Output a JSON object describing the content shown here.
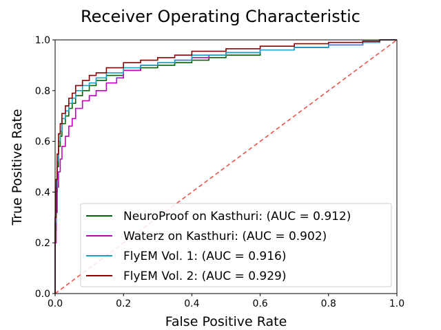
{
  "chart_data": {
    "type": "line",
    "title": "Receiver Operating Characteristic",
    "xlabel": "False Positive Rate",
    "ylabel": "True Positive Rate",
    "xlim": [
      0.0,
      1.0
    ],
    "ylim": [
      0.0,
      1.0
    ],
    "xticks": [
      "0.0",
      "0.2",
      "0.4",
      "0.6",
      "0.8",
      "1.0"
    ],
    "yticks": [
      "0.0",
      "0.2",
      "0.4",
      "0.6",
      "0.8",
      "1.0"
    ],
    "grid": false,
    "legend_position": "lower-right",
    "series": [
      {
        "name": "NeuroProof on Kasthuri: (AUC = 0.912)",
        "color": "#006400",
        "x": [
          0,
          0.003,
          0.006,
          0.01,
          0.015,
          0.02,
          0.03,
          0.04,
          0.05,
          0.06,
          0.08,
          0.1,
          0.12,
          0.15,
          0.2,
          0.25,
          0.3,
          0.35,
          0.4,
          0.45,
          0.5,
          0.6,
          0.7,
          0.8,
          0.9,
          0.95,
          1.0
        ],
        "y": [
          0,
          0.25,
          0.4,
          0.5,
          0.58,
          0.62,
          0.67,
          0.7,
          0.73,
          0.75,
          0.78,
          0.8,
          0.82,
          0.84,
          0.86,
          0.88,
          0.89,
          0.9,
          0.91,
          0.92,
          0.93,
          0.94,
          0.96,
          0.97,
          0.98,
          0.99,
          1.0
        ]
      },
      {
        "name": "Waterz on Kasthuri: (AUC = 0.902)",
        "color": "#c000c0",
        "x": [
          0,
          0.003,
          0.006,
          0.01,
          0.015,
          0.02,
          0.03,
          0.04,
          0.05,
          0.06,
          0.08,
          0.1,
          0.12,
          0.15,
          0.18,
          0.2,
          0.25,
          0.3,
          0.35,
          0.4,
          0.45,
          0.5,
          0.6,
          0.7,
          0.8,
          0.9,
          0.95,
          1.0
        ],
        "y": [
          0,
          0.2,
          0.32,
          0.42,
          0.48,
          0.53,
          0.58,
          0.62,
          0.66,
          0.69,
          0.73,
          0.76,
          0.78,
          0.8,
          0.83,
          0.85,
          0.88,
          0.9,
          0.91,
          0.92,
          0.93,
          0.94,
          0.95,
          0.96,
          0.97,
          0.98,
          0.99,
          1.0
        ]
      },
      {
        "name": "FlyEM Vol. 1: (AUC = 0.916)",
        "color": "#1aa0c0",
        "x": [
          0,
          0.003,
          0.006,
          0.01,
          0.015,
          0.02,
          0.03,
          0.04,
          0.05,
          0.06,
          0.08,
          0.1,
          0.12,
          0.15,
          0.2,
          0.25,
          0.3,
          0.35,
          0.4,
          0.5,
          0.6,
          0.7,
          0.8,
          0.9,
          0.95,
          1.0
        ],
        "y": [
          0,
          0.28,
          0.42,
          0.52,
          0.6,
          0.64,
          0.69,
          0.72,
          0.75,
          0.77,
          0.8,
          0.82,
          0.83,
          0.85,
          0.87,
          0.89,
          0.9,
          0.91,
          0.92,
          0.94,
          0.95,
          0.96,
          0.97,
          0.98,
          0.99,
          1.0
        ]
      },
      {
        "name": "FlyEM Vol. 2: (AUC = 0.929)",
        "color": "#8b0000",
        "x": [
          0,
          0.003,
          0.006,
          0.01,
          0.015,
          0.02,
          0.03,
          0.04,
          0.05,
          0.06,
          0.08,
          0.1,
          0.12,
          0.15,
          0.2,
          0.25,
          0.3,
          0.35,
          0.4,
          0.5,
          0.6,
          0.7,
          0.8,
          0.9,
          0.95,
          1.0
        ],
        "y": [
          0,
          0.3,
          0.45,
          0.55,
          0.63,
          0.67,
          0.71,
          0.74,
          0.77,
          0.79,
          0.82,
          0.84,
          0.86,
          0.87,
          0.89,
          0.91,
          0.92,
          0.93,
          0.94,
          0.955,
          0.965,
          0.975,
          0.985,
          0.99,
          0.995,
          1.0
        ]
      },
      {
        "name": "",
        "color": "#f0504a",
        "style": "dashed",
        "x": [
          0,
          1
        ],
        "y": [
          0,
          1
        ]
      }
    ]
  }
}
